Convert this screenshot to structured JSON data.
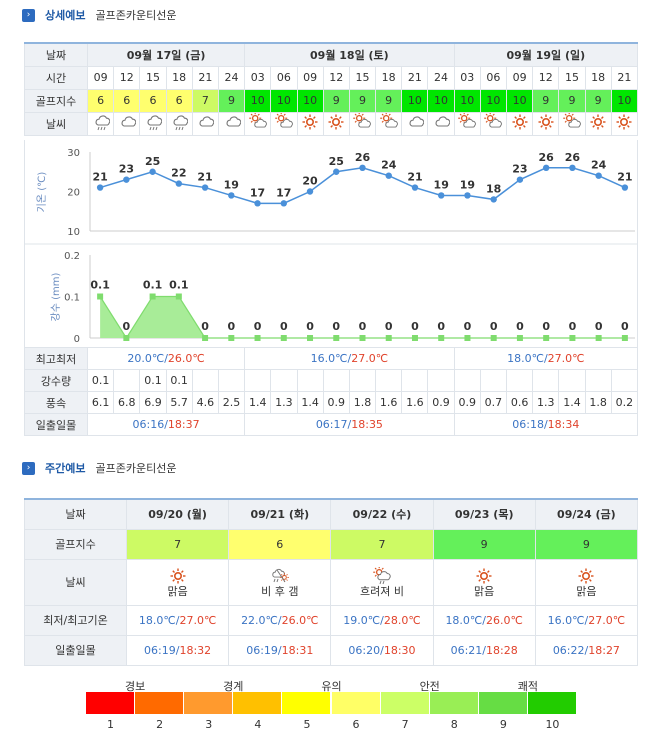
{
  "short": {
    "title": "상세예보",
    "subtitle": "골프존카운티선운",
    "labels": {
      "date": "날짜",
      "time": "시간",
      "golf": "골프지수",
      "weather": "날씨",
      "temp_axis": "기온 (℃)",
      "rain_axis": "강수 (mm)",
      "minmax": "최고최저",
      "precip": "강수량",
      "wind": "풍속",
      "sun": "일출일몰"
    },
    "days": [
      {
        "label": "09월 17일 (금)",
        "span": 6,
        "min": "20.0℃",
        "max": "26.0℃",
        "sunrise": "06:16",
        "sunset": "18:37"
      },
      {
        "label": "09월 18일 (토)",
        "span": 8,
        "min": "16.0℃",
        "max": "27.0℃",
        "sunrise": "06:17",
        "sunset": "18:35"
      },
      {
        "label": "09월 19일 (일)",
        "span": 7,
        "min": "18.0℃",
        "max": "27.0℃",
        "sunrise": "06:18",
        "sunset": "18:34"
      }
    ],
    "hours": [
      "09",
      "12",
      "15",
      "18",
      "21",
      "24",
      "03",
      "06",
      "09",
      "12",
      "15",
      "18",
      "21",
      "24",
      "03",
      "06",
      "09",
      "12",
      "15",
      "18",
      "21"
    ],
    "golf_index": [
      "6",
      "6",
      "6",
      "6",
      "7",
      "9",
      "10",
      "10",
      "10",
      "9",
      "9",
      "9",
      "10",
      "10",
      "10",
      "10",
      "10",
      "9",
      "9",
      "9",
      "10"
    ],
    "weather_icons": [
      "rain-cloud-icon",
      "cloud-icon",
      "rain-cloud-icon",
      "rain-cloud-icon",
      "cloud-icon",
      "cloud-icon",
      "partly-cloudy-icon",
      "partly-cloudy-icon",
      "sun-icon",
      "sun-icon",
      "partly-cloudy-icon",
      "partly-cloudy-icon",
      "cloud-icon",
      "cloud-icon",
      "partly-cloudy-icon",
      "partly-cloudy-icon",
      "sun-icon",
      "sun-icon",
      "partly-cloudy-icon",
      "sun-icon",
      "sun-icon"
    ],
    "precip": [
      "0.1",
      "",
      "0.1",
      "0.1",
      "",
      "",
      "",
      "",
      "",
      "",
      "",
      "",
      "",
      "",
      "",
      "",
      "",
      "",
      "",
      "",
      ""
    ],
    "wind": [
      "6.1",
      "6.8",
      "6.9",
      "5.7",
      "4.6",
      "2.5",
      "1.4",
      "1.3",
      "1.4",
      "0.9",
      "1.8",
      "1.6",
      "1.6",
      "0.9",
      "0.9",
      "0.7",
      "0.6",
      "1.3",
      "1.4",
      "1.8",
      "0.2"
    ]
  },
  "chart_data": [
    {
      "type": "line",
      "ylabel": "기온 (℃)",
      "ylim": [
        10,
        30
      ],
      "yticks": [
        "30",
        "20",
        "10"
      ],
      "values": [
        21,
        23,
        25,
        22,
        21,
        19,
        17,
        17,
        20,
        25,
        26,
        24,
        21,
        19,
        19,
        18,
        23,
        26,
        26,
        24,
        21
      ],
      "labels": [
        "21",
        "23",
        "25",
        "22",
        "21",
        "19",
        "17",
        "17",
        "20",
        "25",
        "26",
        "24",
        "21",
        "19",
        "19",
        "18",
        "23",
        "26",
        "26",
        "24",
        "21"
      ],
      "color": "#4a90d9"
    },
    {
      "type": "area",
      "ylabel": "강수 (mm)",
      "ylim": [
        0,
        0.2
      ],
      "yticks": [
        "0.2",
        "0.1",
        "0"
      ],
      "values": [
        0.1,
        0,
        0.1,
        0.1,
        0,
        0,
        0,
        0,
        0,
        0,
        0,
        0,
        0,
        0,
        0,
        0,
        0,
        0,
        0,
        0,
        0
      ],
      "labels": [
        "0.1",
        "0",
        "0.1",
        "0.1",
        "0",
        "0",
        "0",
        "0",
        "0",
        "0",
        "0",
        "0",
        "0",
        "0",
        "0",
        "0",
        "0",
        "0",
        "0",
        "0",
        "0"
      ],
      "color": "#7fdc6e"
    }
  ],
  "weekly": {
    "title": "주간예보",
    "subtitle": "골프존카운티선운",
    "labels": {
      "date": "날짜",
      "golf": "골프지수",
      "weather": "날씨",
      "minmax": "최저/최고기온",
      "sun": "일출일몰"
    },
    "days": [
      {
        "date": "09/20 (월)",
        "golf": "7",
        "icon": "sun-icon",
        "weather": "맑음",
        "min": "18.0℃",
        "max": "27.0℃",
        "sunrise": "06:19",
        "sunset": "18:32"
      },
      {
        "date": "09/21 (화)",
        "golf": "6",
        "icon": "rain-then-clear-icon",
        "weather": "비 후 갬",
        "min": "22.0℃",
        "max": "26.0℃",
        "sunrise": "06:19",
        "sunset": "18:31"
      },
      {
        "date": "09/22 (수)",
        "golf": "7",
        "icon": "cloudy-rain-icon",
        "weather": "흐려져 비",
        "min": "19.0℃",
        "max": "28.0℃",
        "sunrise": "06:20",
        "sunset": "18:30"
      },
      {
        "date": "09/23 (목)",
        "golf": "9",
        "icon": "sun-icon",
        "weather": "맑음",
        "min": "18.0℃",
        "max": "26.0℃",
        "sunrise": "06:21",
        "sunset": "18:28"
      },
      {
        "date": "09/24 (금)",
        "golf": "9",
        "icon": "sun-icon",
        "weather": "맑음",
        "min": "16.0℃",
        "max": "27.0℃",
        "sunrise": "06:22",
        "sunset": "18:27"
      }
    ]
  },
  "legend": {
    "categories": [
      "경보",
      "경계",
      "유의",
      "안전",
      "쾌적"
    ],
    "numbers": [
      "1",
      "2",
      "3",
      "4",
      "5",
      "6",
      "7",
      "8",
      "9",
      "10"
    ],
    "colors": [
      "#ff0000",
      "#ff6a00",
      "#ff9a2e",
      "#ffc000",
      "#ffff00",
      "#ffff66",
      "#ccff66",
      "#99ee55",
      "#66dd44",
      "#22cc00"
    ]
  }
}
